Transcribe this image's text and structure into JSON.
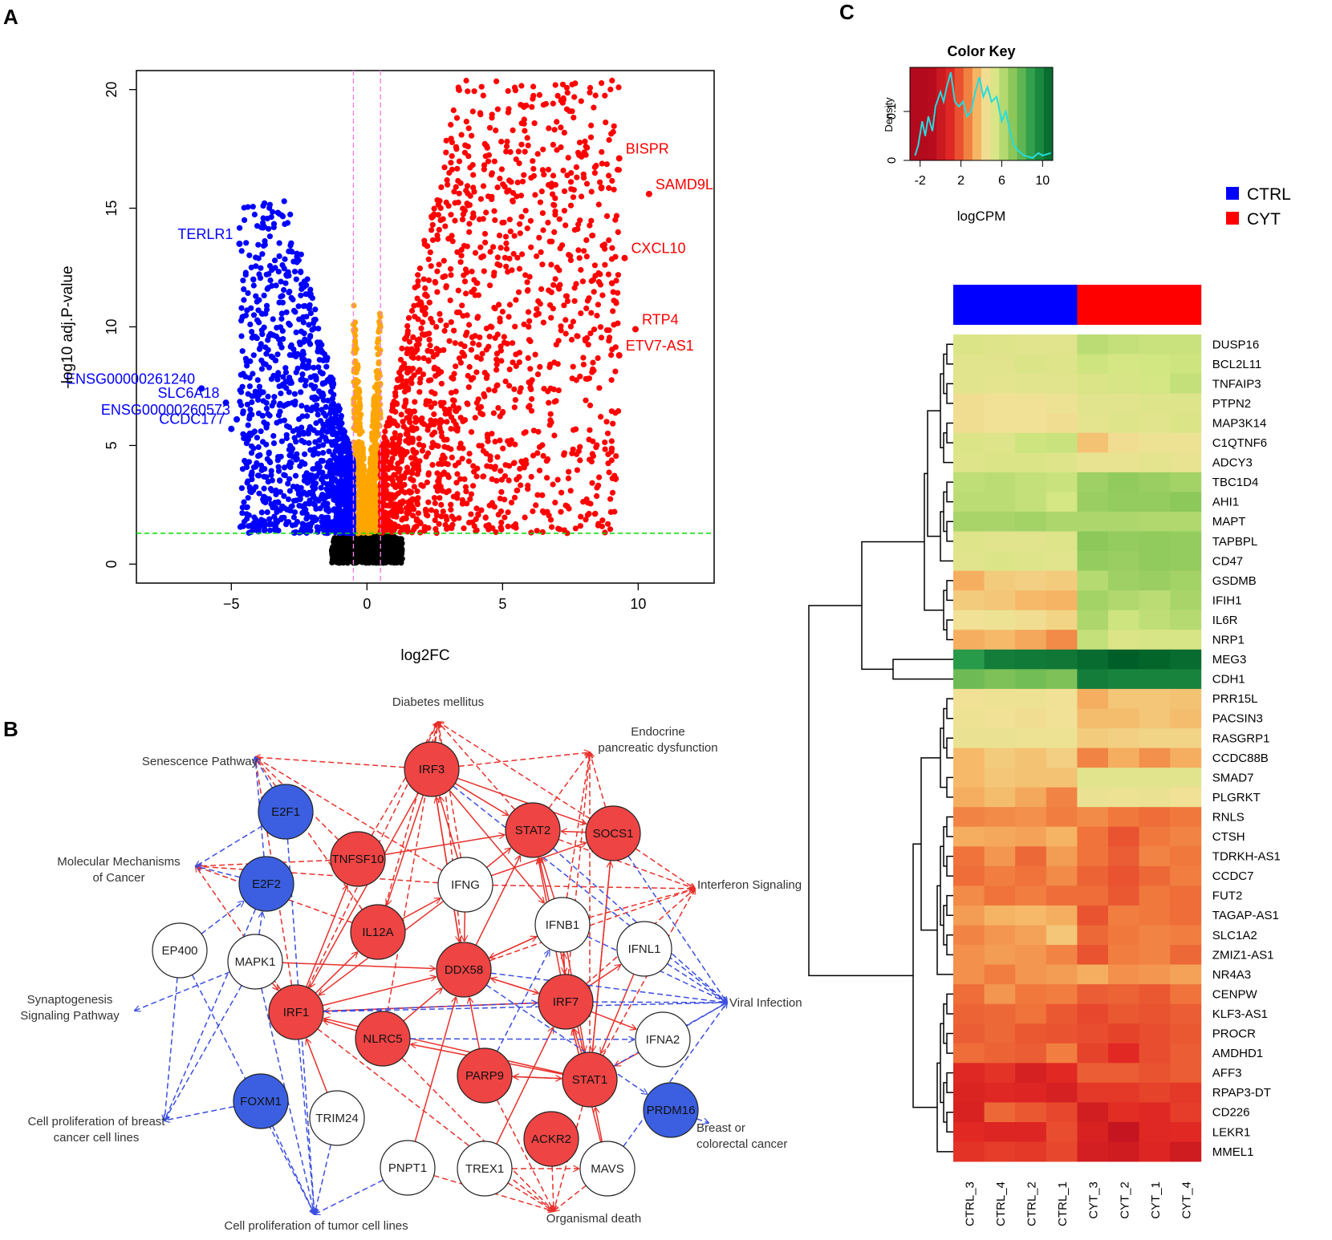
{
  "panels": {
    "a": "A",
    "b": "B",
    "c": "C"
  },
  "chart_data": [
    {
      "type": "scatter",
      "panel": "A",
      "title": "",
      "xlabel": "log2FC",
      "ylabel": "-log10 adj.P-value",
      "xlim": [
        -8.5,
        12.8
      ],
      "ylim": [
        -0.8,
        20.8
      ],
      "xticks": [
        -5,
        0,
        5,
        10
      ],
      "xtick_labels": [
        "−5",
        "0",
        "5",
        "10"
      ],
      "yticks": [
        0,
        5,
        10,
        15,
        20
      ],
      "ytick_labels": [
        "0",
        "5",
        "10",
        "15",
        "20"
      ],
      "vlines": [
        -0.5,
        0.5
      ],
      "hline": 1.3,
      "colors": {
        "up": "#ff0000",
        "down": "#0000ff",
        "fc_small": "#ffa500",
        "nonsig": "#000000",
        "vline": "#ee82ee",
        "hline": "#00dd00"
      },
      "labeled_points": [
        {
          "gene": "BISPR",
          "x": 9.3,
          "y": 17.1,
          "group": "up"
        },
        {
          "gene": "SAMD9L",
          "x": 10.4,
          "y": 15.6,
          "group": "up"
        },
        {
          "gene": "CXCL10",
          "x": 9.5,
          "y": 12.9,
          "group": "up"
        },
        {
          "gene": "RTP4",
          "x": 9.9,
          "y": 9.9,
          "group": "up"
        },
        {
          "gene": "ETV7-AS1",
          "x": 9.3,
          "y": 8.8,
          "group": "up"
        },
        {
          "gene": "TERLR1",
          "x": -4.7,
          "y": 13.5,
          "group": "down"
        },
        {
          "gene": "ENSG00000261240",
          "x": -6.1,
          "y": 7.4,
          "group": "down"
        },
        {
          "gene": "SLC6A18",
          "x": -5.2,
          "y": 6.8,
          "group": "down"
        },
        {
          "gene": "ENSG00000260573",
          "x": -4.8,
          "y": 6.1,
          "group": "down"
        },
        {
          "gene": "CCDC177",
          "x": -5.0,
          "y": 5.7,
          "group": "down"
        }
      ]
    },
    {
      "type": "heatmap",
      "panel": "C",
      "title": "Color Key",
      "color_key": {
        "title": "Color Key",
        "xlabel": "logCPM",
        "ylabel": "Density",
        "xticks": [
          "-2",
          "2",
          "6",
          "10"
        ],
        "yticks": [
          "0",
          "0.1"
        ],
        "xlim": [
          -3,
          11
        ],
        "density_curve": [
          [
            -2.5,
            0.01
          ],
          [
            -2.2,
            0.03
          ],
          [
            -1.8,
            0.08
          ],
          [
            -1.5,
            0.05
          ],
          [
            -1.2,
            0.09
          ],
          [
            -0.8,
            0.06
          ],
          [
            -0.5,
            0.11
          ],
          [
            0,
            0.14
          ],
          [
            0.3,
            0.12
          ],
          [
            0.6,
            0.15
          ],
          [
            1,
            0.18
          ],
          [
            1.4,
            0.12
          ],
          [
            1.8,
            0.11
          ],
          [
            2.2,
            0.12
          ],
          [
            2.6,
            0.09
          ],
          [
            3,
            0.1
          ],
          [
            3.4,
            0.14
          ],
          [
            3.8,
            0.17
          ],
          [
            4.2,
            0.13
          ],
          [
            4.6,
            0.15
          ],
          [
            5,
            0.12
          ],
          [
            5.5,
            0.13
          ],
          [
            6,
            0.08
          ],
          [
            6.4,
            0.1
          ],
          [
            6.8,
            0.06
          ],
          [
            7.2,
            0.03
          ],
          [
            7.6,
            0.02
          ],
          [
            8.2,
            0.01
          ],
          [
            9,
            0.005
          ],
          [
            9.6,
            0.015
          ],
          [
            10,
            0.01
          ],
          [
            10.8,
            0.015
          ]
        ]
      },
      "legend": [
        {
          "label": "CTRL",
          "color": "#0000ff"
        },
        {
          "label": "CYT",
          "color": "#ff0000"
        }
      ],
      "columns": [
        "CTRL_3",
        "CTRL_4",
        "CTRL_2",
        "CTRL_1",
        "CYT_3",
        "CYT_2",
        "CYT_1",
        "CYT_4"
      ],
      "column_groups": [
        "CTRL",
        "CTRL",
        "CTRL",
        "CTRL",
        "CYT",
        "CYT",
        "CYT",
        "CYT"
      ],
      "rows": [
        "DUSP16",
        "BCL2L11",
        "TNFAIP3",
        "PTPN2",
        "MAP3K14",
        "C1QTNF6",
        "ADCY3",
        "TBC1D4",
        "AHI1",
        "MAPT",
        "TAPBPL",
        "CD47",
        "GSDMB",
        "IFIH1",
        "IL6R",
        "NRP1",
        "MEG3",
        "CDH1",
        "PRR15L",
        "PACSIN3",
        "RASGRP1",
        "CCDC88B",
        "SMAD7",
        "PLGRKT",
        "RNLS",
        "CTSH",
        "TDRKH-AS1",
        "CCDC7",
        "FUT2",
        "TAGAP-AS1",
        "SLC1A2",
        "ZMIZ1-AS1",
        "NR4A3",
        "CENPW",
        "KLF3-AS1",
        "PROCR",
        "AMDHD1",
        "AFF3",
        "RPAP3-DT",
        "CD226",
        "LEKR1",
        "MMEL1"
      ],
      "values": [
        [
          5.2,
          5.1,
          5.0,
          5.0,
          6.0,
          5.8,
          5.7,
          5.7
        ],
        [
          5.0,
          5.0,
          5.2,
          5.1,
          5.6,
          5.4,
          5.5,
          5.6
        ],
        [
          5.0,
          4.9,
          5.0,
          5.0,
          5.2,
          5.3,
          5.4,
          5.8
        ],
        [
          4.4,
          4.5,
          4.5,
          4.6,
          5.0,
          5.0,
          5.1,
          5.1
        ],
        [
          4.4,
          4.5,
          4.5,
          4.4,
          4.9,
          5.1,
          5.0,
          5.2
        ],
        [
          5.2,
          5.1,
          5.6,
          5.7,
          3.8,
          4.4,
          4.6,
          4.6
        ],
        [
          5.1,
          5.2,
          5.2,
          5.1,
          4.8,
          4.8,
          4.9,
          4.8
        ],
        [
          5.9,
          6.0,
          5.8,
          5.7,
          6.6,
          6.9,
          6.7,
          6.5
        ],
        [
          6.0,
          6.0,
          5.8,
          5.4,
          6.7,
          6.8,
          6.8,
          7.0
        ],
        [
          6.4,
          6.4,
          6.5,
          6.3,
          6.3,
          6.3,
          6.2,
          6.2
        ],
        [
          5.1,
          5.0,
          5.0,
          5.1,
          7.0,
          6.8,
          6.9,
          6.8
        ],
        [
          5.0,
          5.2,
          5.1,
          5.0,
          6.8,
          6.7,
          6.9,
          6.8
        ],
        [
          3.4,
          4.0,
          4.1,
          4.0,
          6.1,
          6.6,
          6.7,
          6.5
        ],
        [
          4.0,
          3.9,
          3.6,
          3.5,
          6.5,
          6.2,
          6.0,
          6.4
        ],
        [
          4.5,
          4.6,
          4.4,
          4.2,
          6.3,
          5.6,
          5.9,
          6.1
        ],
        [
          3.4,
          3.6,
          3.3,
          2.8,
          5.8,
          5.2,
          5.3,
          5.3
        ],
        [
          9.0,
          10.0,
          10.1,
          10.2,
          10.6,
          11.0,
          10.8,
          10.6
        ],
        [
          7.6,
          7.3,
          7.5,
          7.3,
          10.0,
          9.8,
          9.8,
          9.8
        ],
        [
          4.5,
          4.6,
          4.6,
          4.5,
          3.4,
          3.9,
          3.9,
          3.8
        ],
        [
          4.6,
          4.5,
          4.4,
          4.5,
          3.7,
          3.7,
          3.9,
          3.7
        ],
        [
          4.7,
          4.7,
          4.6,
          4.6,
          4.0,
          4.1,
          4.2,
          4.2
        ],
        [
          3.6,
          4.0,
          3.8,
          4.1,
          2.7,
          3.4,
          2.9,
          3.4
        ],
        [
          3.6,
          3.9,
          3.8,
          3.8,
          5.0,
          5.0,
          5.0,
          5.0
        ],
        [
          3.4,
          3.7,
          3.3,
          2.7,
          4.7,
          4.6,
          4.7,
          4.5
        ],
        [
          2.7,
          2.8,
          2.9,
          2.6,
          2.8,
          2.5,
          2.3,
          2.5
        ],
        [
          3.4,
          3.3,
          3.2,
          3.5,
          2.4,
          1.8,
          2.5,
          2.7
        ],
        [
          2.4,
          3.0,
          2.2,
          3.1,
          2.4,
          2.0,
          2.7,
          2.5
        ],
        [
          2.3,
          2.6,
          2.4,
          2.8,
          2.1,
          1.8,
          2.2,
          2.6
        ],
        [
          2.8,
          2.4,
          2.6,
          2.3,
          2.3,
          1.9,
          2.5,
          2.3
        ],
        [
          3.1,
          3.5,
          3.6,
          3.4,
          1.8,
          2.6,
          2.5,
          2.3
        ],
        [
          2.7,
          3.0,
          3.2,
          3.9,
          2.2,
          2.5,
          2.7,
          2.6
        ],
        [
          2.9,
          3.1,
          3.0,
          2.7,
          1.8,
          2.6,
          2.7,
          2.2
        ],
        [
          2.9,
          2.6,
          3.0,
          3.1,
          3.4,
          2.9,
          3.0,
          3.2
        ],
        [
          2.3,
          3.0,
          2.5,
          2.6,
          2.0,
          2.1,
          1.9,
          2.4
        ],
        [
          2.1,
          2.2,
          2.4,
          1.9,
          1.6,
          1.9,
          1.8,
          2.0
        ],
        [
          2.0,
          2.2,
          1.9,
          1.8,
          1.7,
          1.5,
          1.7,
          1.9
        ],
        [
          2.3,
          2.1,
          2.0,
          2.6,
          1.5,
          1.0,
          1.7,
          2.0
        ],
        [
          0.9,
          1.2,
          0.5,
          1.0,
          2.0,
          2.0,
          1.8,
          2.0
        ],
        [
          0.7,
          0.9,
          0.8,
          0.5,
          1.3,
          1.3,
          1.5,
          1.3
        ],
        [
          0.6,
          2.2,
          1.9,
          1.6,
          0.3,
          1.1,
          0.9,
          1.4
        ],
        [
          1.0,
          0.8,
          0.8,
          1.7,
          0.6,
          -0.3,
          0.9,
          1.0
        ],
        [
          1.2,
          1.4,
          1.3,
          1.6,
          0.4,
          0.2,
          0.8,
          0.2
        ]
      ]
    }
  ],
  "network": {
    "nodes": [
      {
        "id": "IRF3",
        "label": "IRF3",
        "type": "up"
      },
      {
        "id": "E2F1",
        "label": "E2F1",
        "type": "down"
      },
      {
        "id": "STAT2",
        "label": "STAT2",
        "type": "up"
      },
      {
        "id": "SOCS1",
        "label": "SOCS1",
        "type": "up"
      },
      {
        "id": "TNFSF10",
        "label": "TNFSF10",
        "type": "up"
      },
      {
        "id": "E2F2",
        "label": "E2F2",
        "type": "down"
      },
      {
        "id": "IFNG",
        "label": "IFNG",
        "type": "neutral"
      },
      {
        "id": "IL12A",
        "label": "IL12A",
        "type": "up"
      },
      {
        "id": "IFNB1",
        "label": "IFNB1",
        "type": "neutral"
      },
      {
        "id": "EP400",
        "label": "EP400",
        "type": "neutral"
      },
      {
        "id": "MAPK1",
        "label": "MAPK1",
        "type": "neutral"
      },
      {
        "id": "DDX58",
        "label": "DDX58",
        "type": "up"
      },
      {
        "id": "IFNL1",
        "label": "IFNL1",
        "type": "neutral"
      },
      {
        "id": "IRF7",
        "label": "IRF7",
        "type": "up"
      },
      {
        "id": "IRF1",
        "label": "IRF1",
        "type": "up"
      },
      {
        "id": "NLRC5",
        "label": "NLRC5",
        "type": "up"
      },
      {
        "id": "IFNA2",
        "label": "IFNA2",
        "type": "neutral"
      },
      {
        "id": "FOXM1",
        "label": "FOXM1",
        "type": "down"
      },
      {
        "id": "PARP9",
        "label": "PARP9",
        "type": "up"
      },
      {
        "id": "STAT1",
        "label": "STAT1",
        "type": "up"
      },
      {
        "id": "PRDM16",
        "label": "PRDM16",
        "type": "down"
      },
      {
        "id": "TRIM24",
        "label": "TRIM24",
        "type": "neutral"
      },
      {
        "id": "ACKR2",
        "label": "ACKR2",
        "type": "up"
      },
      {
        "id": "PNPT1",
        "label": "PNPT1",
        "type": "neutral"
      },
      {
        "id": "TREX1",
        "label": "TREX1",
        "type": "neutral"
      },
      {
        "id": "MAVS",
        "label": "MAVS",
        "type": "neutral"
      }
    ],
    "functions": [
      {
        "id": "diab",
        "lines": [
          "Diabetes mellitus"
        ]
      },
      {
        "id": "endo",
        "lines": [
          "Endocrine",
          "pancreatic dysfunction"
        ]
      },
      {
        "id": "sen",
        "lines": [
          "Senescence Pathway"
        ]
      },
      {
        "id": "mol",
        "lines": [
          "Molecular Mechanisms",
          "of Cancer"
        ]
      },
      {
        "id": "ifn",
        "lines": [
          "Interferon Signaling"
        ]
      },
      {
        "id": "syn",
        "lines": [
          "Synaptogenesis",
          "Signaling Pathway"
        ]
      },
      {
        "id": "viral",
        "lines": [
          "Viral Infection"
        ]
      },
      {
        "id": "breastp",
        "lines": [
          "Cell proliferation of breast",
          "cancer cell lines"
        ]
      },
      {
        "id": "bcrc",
        "lines": [
          "Breast or",
          "colorectal cancer"
        ]
      },
      {
        "id": "tumor",
        "lines": [
          "Cell proliferation of tumor cell lines"
        ]
      },
      {
        "id": "death",
        "lines": [
          "Organismal death"
        ]
      }
    ],
    "colors": {
      "up": "#ef4444",
      "down": "#3b5fe0",
      "neutral": "#ffffff",
      "up_edge": "#e8302a",
      "down_edge": "#3b4fe0"
    }
  }
}
